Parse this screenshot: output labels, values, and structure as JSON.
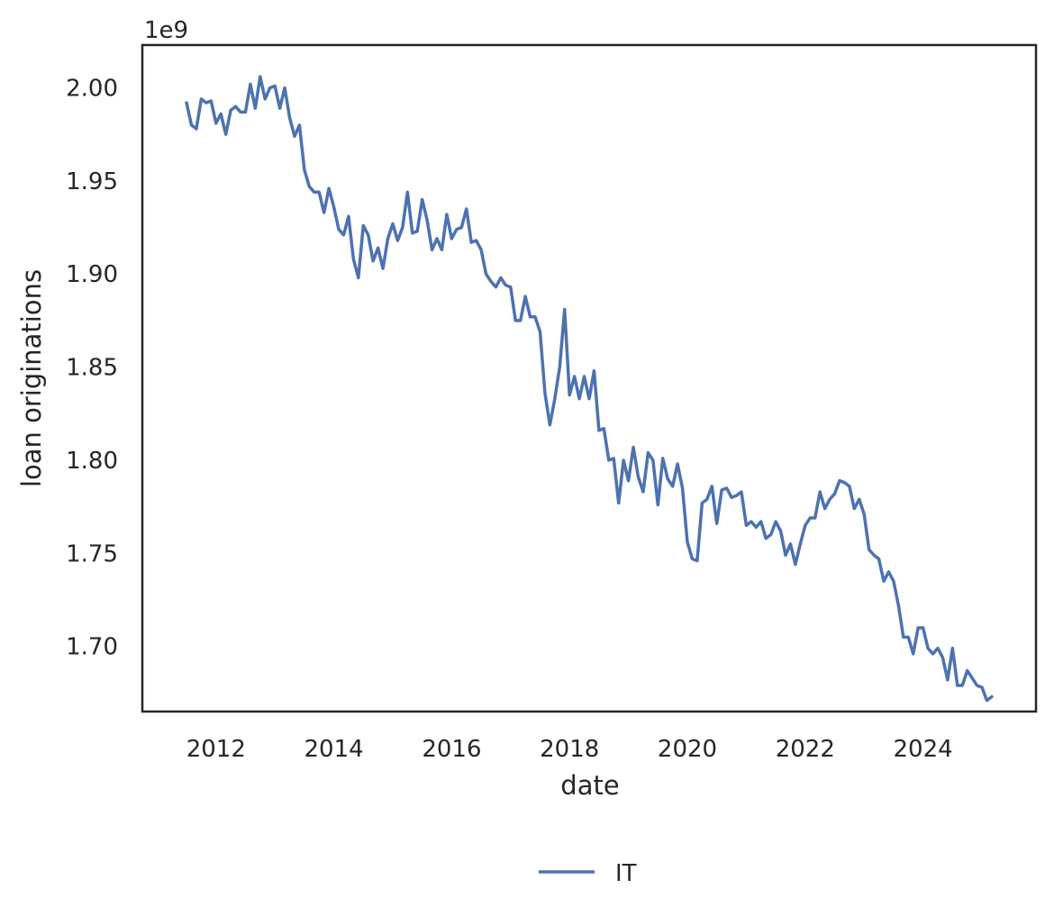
{
  "chart_data": {
    "type": "line",
    "xlabel": "date",
    "ylabel": "loan originations",
    "y_offset_label": "1e9",
    "x_tick_labels": [
      "2012",
      "2014",
      "2016",
      "2018",
      "2020",
      "2022",
      "2024"
    ],
    "y_tick_labels": [
      "1.70",
      "1.75",
      "1.80",
      "1.85",
      "1.90",
      "1.95",
      "2.00"
    ],
    "xlim": [
      "2010-10",
      "2025-12"
    ],
    "ylim": [
      1665000000,
      2023000000
    ],
    "grid": false,
    "legend_position": "below chart, centered",
    "series": [
      {
        "name": "IT",
        "color": "#4c72b0",
        "x": [
          "2011-07",
          "2011-08",
          "2011-09",
          "2011-10",
          "2011-11",
          "2011-12",
          "2012-01",
          "2012-02",
          "2012-03",
          "2012-04",
          "2012-05",
          "2012-06",
          "2012-07",
          "2012-08",
          "2012-09",
          "2012-10",
          "2012-11",
          "2012-12",
          "2013-01",
          "2013-02",
          "2013-03",
          "2013-04",
          "2013-05",
          "2013-06",
          "2013-07",
          "2013-08",
          "2013-09",
          "2013-10",
          "2013-11",
          "2013-12",
          "2014-01",
          "2014-02",
          "2014-03",
          "2014-04",
          "2014-05",
          "2014-06",
          "2014-07",
          "2014-08",
          "2014-09",
          "2014-10",
          "2014-11",
          "2014-12",
          "2015-01",
          "2015-02",
          "2015-03",
          "2015-04",
          "2015-05",
          "2015-06",
          "2015-07",
          "2015-08",
          "2015-09",
          "2015-10",
          "2015-11",
          "2015-12",
          "2016-01",
          "2016-02",
          "2016-03",
          "2016-04",
          "2016-05",
          "2016-06",
          "2016-07",
          "2016-08",
          "2016-09",
          "2016-10",
          "2016-11",
          "2016-12",
          "2017-01",
          "2017-02",
          "2017-03",
          "2017-04",
          "2017-05",
          "2017-06",
          "2017-07",
          "2017-08",
          "2017-09",
          "2017-10",
          "2017-11",
          "2017-12",
          "2018-01",
          "2018-02",
          "2018-03",
          "2018-04",
          "2018-05",
          "2018-06",
          "2018-07",
          "2018-08",
          "2018-09",
          "2018-10",
          "2018-11",
          "2018-12",
          "2019-01",
          "2019-02",
          "2019-03",
          "2019-04",
          "2019-05",
          "2019-06",
          "2019-07",
          "2019-08",
          "2019-09",
          "2019-10",
          "2019-11",
          "2019-12",
          "2020-01",
          "2020-02",
          "2020-03",
          "2020-04",
          "2020-05",
          "2020-06",
          "2020-07",
          "2020-08",
          "2020-09",
          "2020-10",
          "2020-11",
          "2020-12",
          "2021-01",
          "2021-02",
          "2021-03",
          "2021-04",
          "2021-05",
          "2021-06",
          "2021-07",
          "2021-08",
          "2021-09",
          "2021-10",
          "2021-11",
          "2021-12",
          "2022-01",
          "2022-02",
          "2022-03",
          "2022-04",
          "2022-05",
          "2022-06",
          "2022-07",
          "2022-08",
          "2022-09",
          "2022-10",
          "2022-11",
          "2022-12",
          "2023-01",
          "2023-02",
          "2023-03",
          "2023-04",
          "2023-05",
          "2023-06",
          "2023-07",
          "2023-08",
          "2023-09",
          "2023-10",
          "2023-11",
          "2023-12",
          "2024-01",
          "2024-02",
          "2024-03",
          "2024-04",
          "2024-05",
          "2024-06",
          "2024-07",
          "2024-08",
          "2024-09",
          "2024-10",
          "2024-11",
          "2024-12",
          "2025-01",
          "2025-02",
          "2025-03"
        ],
        "values": [
          1992,
          1980,
          1978,
          1994,
          1992,
          1993,
          1981,
          1986,
          1975,
          1988,
          1990,
          1987,
          1987,
          2002,
          1989,
          2006,
          1994,
          2000,
          2001,
          1989,
          2000,
          1984,
          1974,
          1980,
          1956,
          1947,
          1944,
          1944,
          1933,
          1946,
          1936,
          1924,
          1921,
          1931,
          1908,
          1898,
          1926,
          1921,
          1907,
          1914,
          1903,
          1919,
          1927,
          1918,
          1925,
          1944,
          1922,
          1923,
          1940,
          1929,
          1913,
          1919,
          1913,
          1932,
          1919,
          1924,
          1925,
          1935,
          1917,
          1918,
          1913,
          1900,
          1896,
          1893,
          1898,
          1894,
          1893,
          1875,
          1875,
          1888,
          1877,
          1877,
          1869,
          1836,
          1819,
          1833,
          1850,
          1881,
          1835,
          1845,
          1833,
          1845,
          1833,
          1848,
          1816,
          1817,
          1800,
          1801,
          1777,
          1800,
          1789,
          1807,
          1791,
          1783,
          1804,
          1800,
          1776,
          1801,
          1790,
          1786,
          1798,
          1785,
          1756,
          1747,
          1746,
          1777,
          1779,
          1786,
          1766,
          1784,
          1785,
          1780,
          1781,
          1783,
          1765,
          1767,
          1764,
          1767,
          1758,
          1760,
          1767,
          1762,
          1749,
          1755,
          1744,
          1755,
          1765,
          1769,
          1769,
          1783,
          1774,
          1779,
          1782,
          1789,
          1788,
          1786,
          1774,
          1779,
          1771,
          1752,
          1749,
          1747,
          1735,
          1740,
          1735,
          1722,
          1705,
          1705,
          1696,
          1710,
          1710,
          1699,
          1696,
          1699,
          1694,
          1682,
          1699,
          1679,
          1679,
          1687,
          1683,
          1679,
          1678,
          1671,
          1673
        ]
      }
    ]
  }
}
